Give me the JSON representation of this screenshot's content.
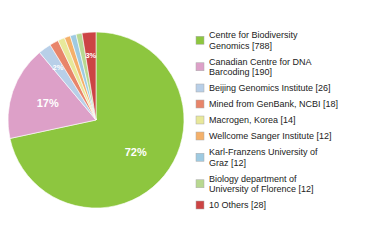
{
  "chart_data": {
    "type": "pie",
    "categories": [
      "Centre for Biodiversity\nGenomics [788]",
      "Canadian Centre for DNA\nBarcoding [190]",
      "Beijing Genomics Institute [26]",
      "Mined from GenBank, NCBI [18]",
      "Macrogen, Korea [14]",
      "Wellcome Sanger Institute [12]",
      "Karl-Franzens University of\nGraz [12]",
      "Biology department of\nUniversity of Florence [12]",
      "10 Others [28]"
    ],
    "values": [
      788,
      190,
      26,
      18,
      14,
      12,
      12,
      12,
      28
    ],
    "value_labels": [
      "72%",
      "17%",
      "2%",
      null,
      null,
      null,
      null,
      null,
      "3%"
    ],
    "colors": [
      "#8dc63f",
      "#dda0c8",
      "#b8cfe8",
      "#e8856a",
      "#e8e89a",
      "#f4b06a",
      "#9ecae1",
      "#b8d890",
      "#cc4444"
    ],
    "legend": "right"
  }
}
